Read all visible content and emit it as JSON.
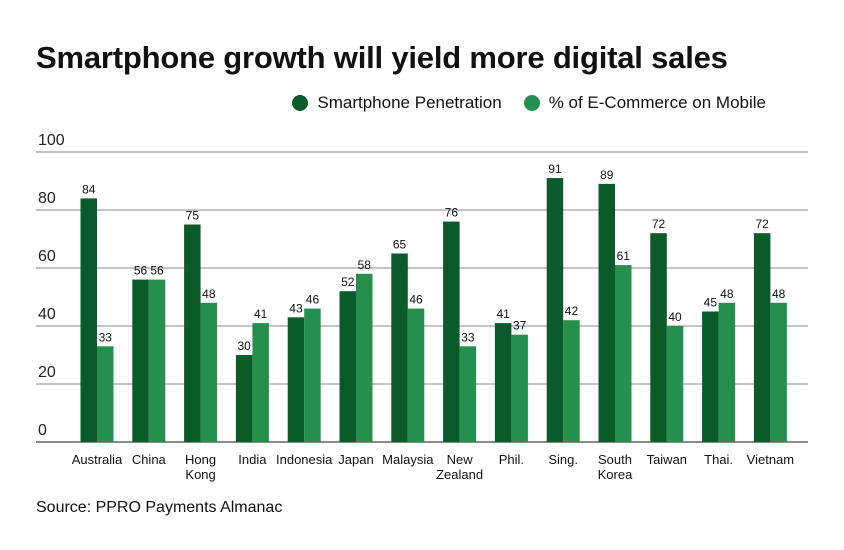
{
  "colors": {
    "series1": "#0b5a2a",
    "series2": "#25904d",
    "grid": "#888888",
    "axis": "#444444"
  },
  "chart_data": {
    "type": "bar",
    "title": "Smartphone growth will yield more digital sales",
    "source": "Source: PPRO Payments Almanac",
    "categories": [
      "Australia",
      "China",
      "Hong Kong",
      "India",
      "Indonesia",
      "Japan",
      "Malaysia",
      "New Zealand",
      "Phil.",
      "Sing.",
      "South Korea",
      "Taiwan",
      "Thai.",
      "Vietnam"
    ],
    "category_lines": [
      [
        "Australia"
      ],
      [
        "China"
      ],
      [
        "Hong",
        "Kong"
      ],
      [
        "India"
      ],
      [
        "Indonesia"
      ],
      [
        "Japan"
      ],
      [
        "Malaysia"
      ],
      [
        "New",
        "Zealand"
      ],
      [
        "Phil."
      ],
      [
        "Sing."
      ],
      [
        "South",
        "Korea"
      ],
      [
        "Taiwan"
      ],
      [
        "Thai."
      ],
      [
        "Vietnam"
      ]
    ],
    "series": [
      {
        "name": "Smartphone Penetration",
        "values": [
          84,
          56,
          75,
          30,
          43,
          52,
          65,
          76,
          41,
          91,
          89,
          72,
          45,
          72
        ]
      },
      {
        "name": "% of E-Commerce on Mobile",
        "values": [
          33,
          56,
          48,
          41,
          46,
          58,
          46,
          33,
          37,
          42,
          61,
          40,
          48,
          48
        ]
      }
    ],
    "ylim": [
      0,
      100
    ],
    "yticks": [
      0,
      20,
      40,
      60,
      80,
      100
    ],
    "xlabel": "",
    "ylabel": "",
    "grid": true,
    "legend_position": "top-right"
  }
}
